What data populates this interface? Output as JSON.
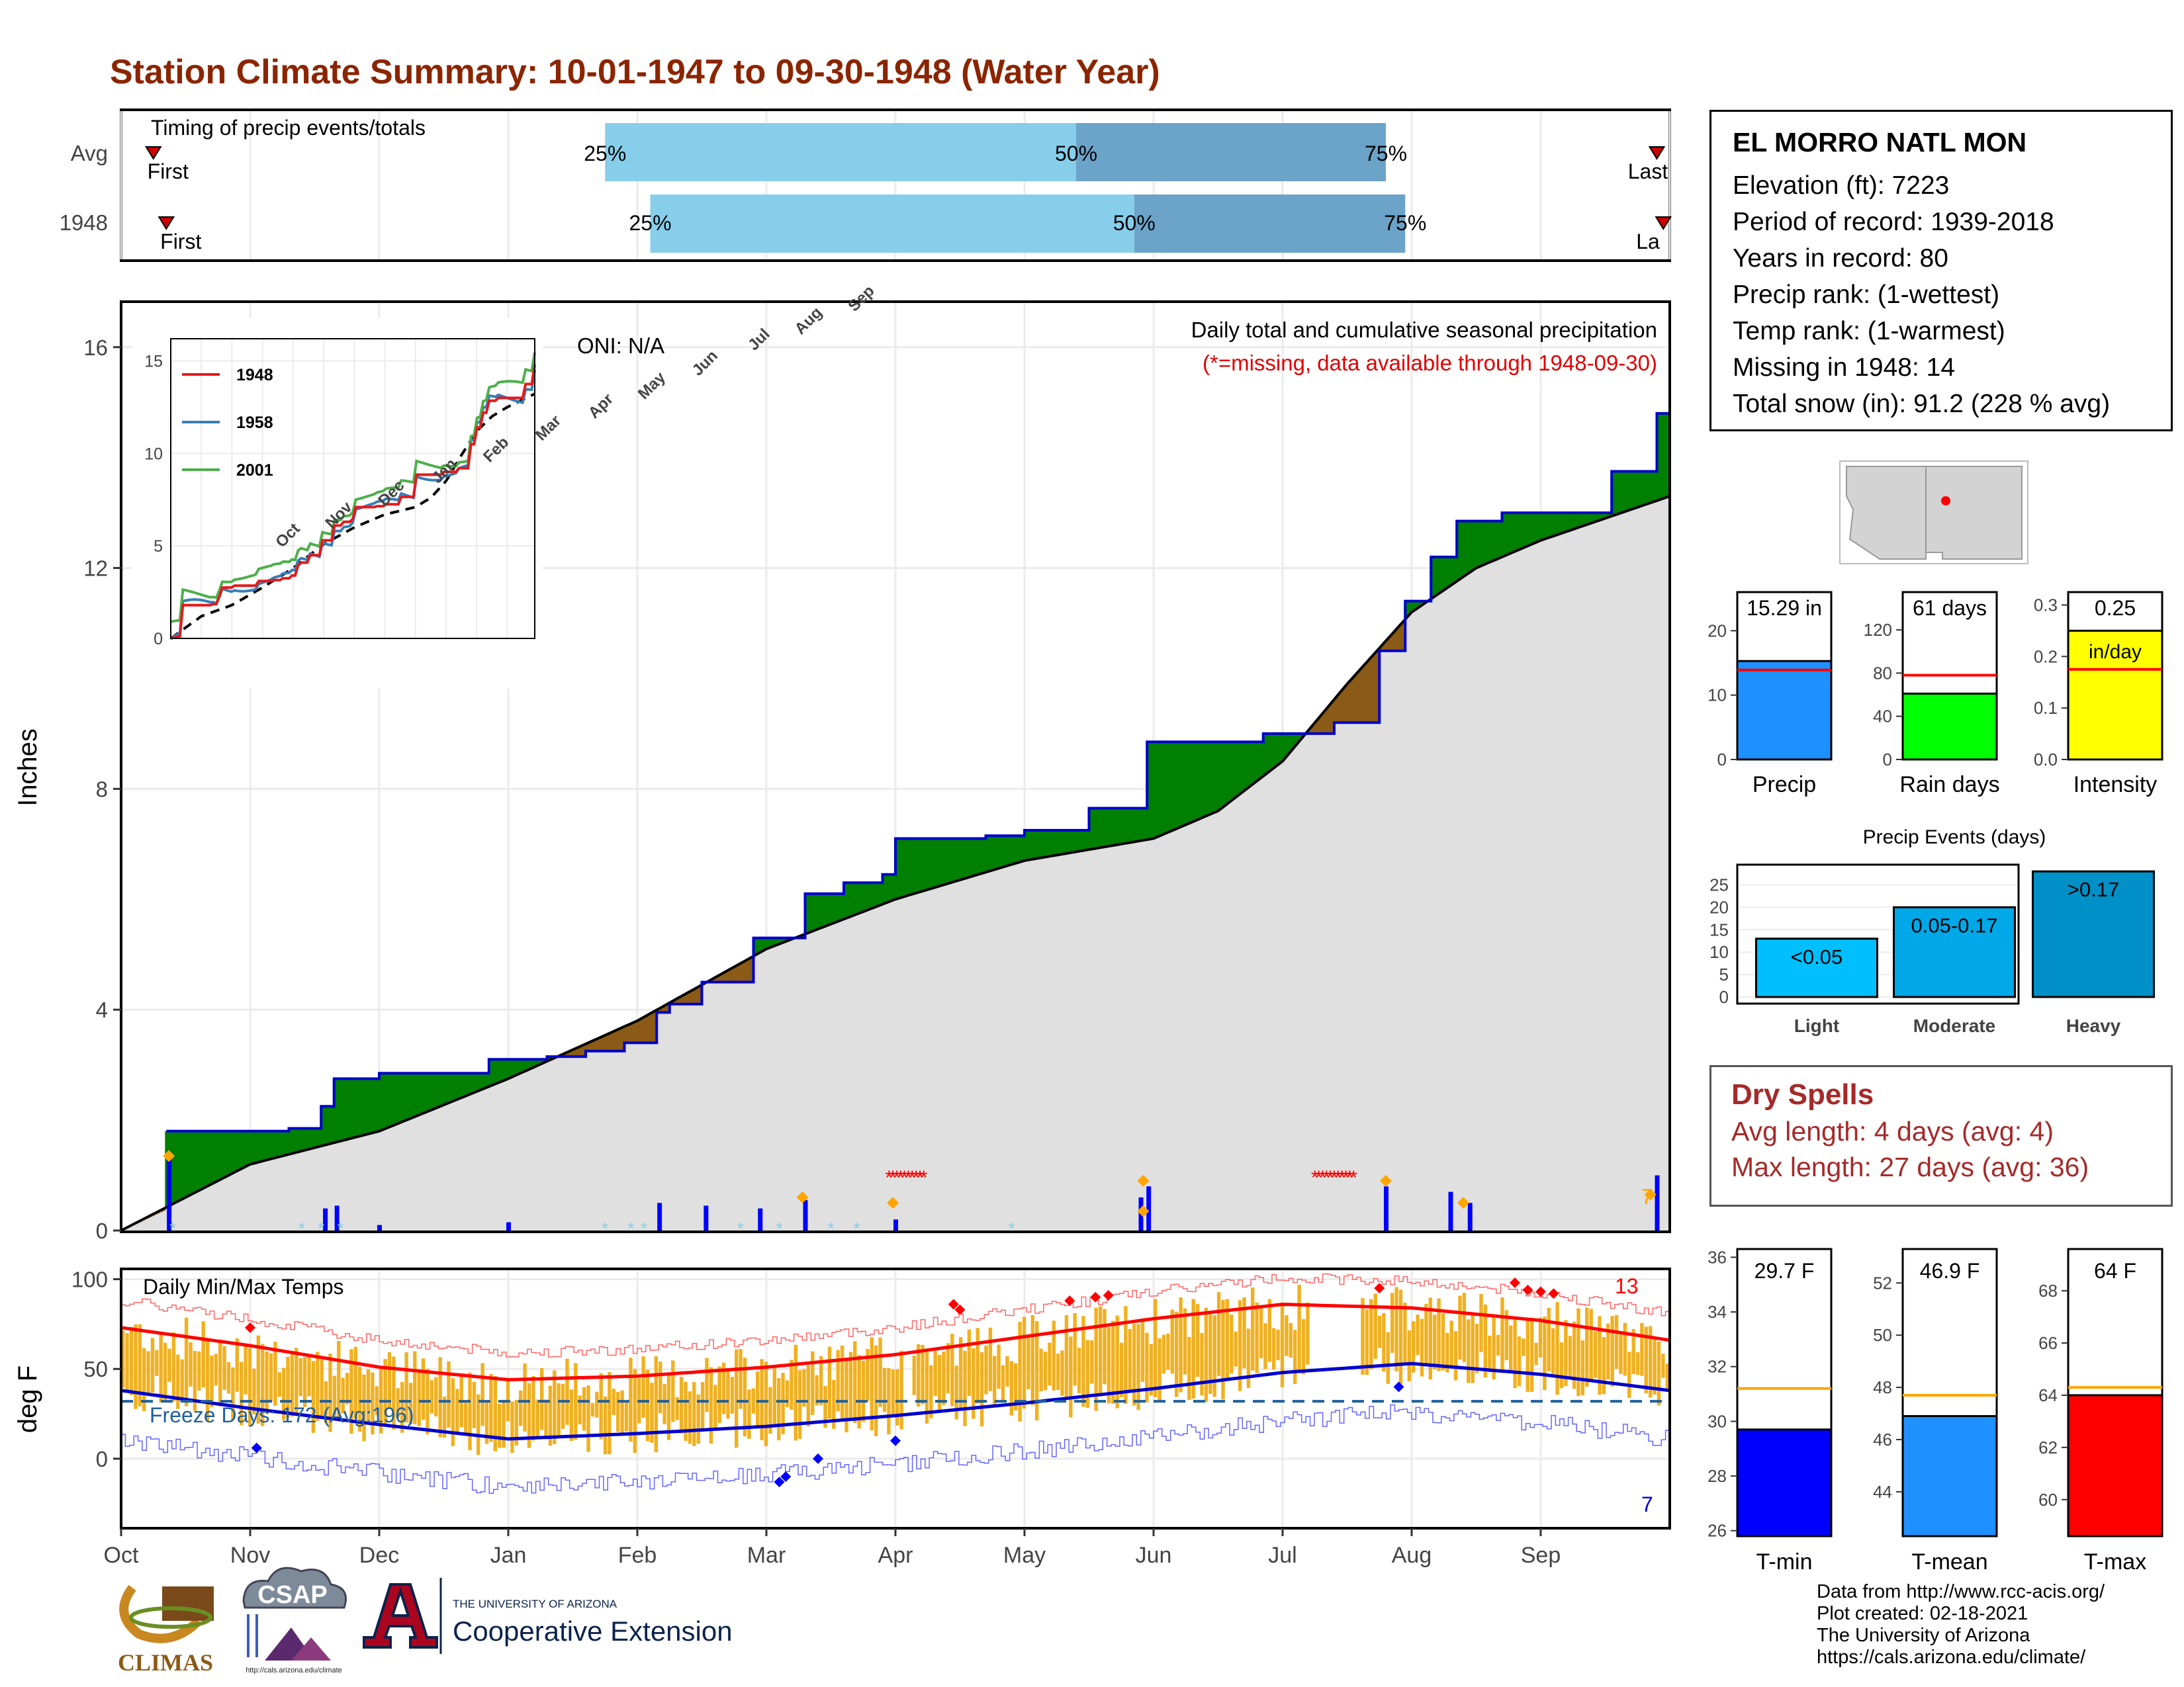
{
  "title": "Station Climate Summary: 10-01-1947 to 09-30-1948 (Water Year)",
  "timing": {
    "label": "Timing of precip events/totals",
    "rows": [
      {
        "name": "Avg",
        "first_label": "First",
        "last_label": "Last",
        "p25_label": "25%",
        "p50_label": "50%",
        "p75_label": "75%"
      },
      {
        "name": "1948",
        "first_label": "First",
        "last_label": "La",
        "p25_label": "25%",
        "p50_label": "50%",
        "p75_label": "75%"
      }
    ]
  },
  "precip_panel": {
    "ylabel": "Inches",
    "yticks": [
      "0",
      "4",
      "8",
      "12",
      "16"
    ],
    "oni_label": "ONI: N/A",
    "caption": "Daily total and cumulative seasonal precipitation",
    "missing_note": "(*=missing, data available through 1948-09-30)",
    "corner_count": "7",
    "colors": {
      "above_avg": "#008000",
      "below_avg": "#8b5a16",
      "avg_fill": "#e0e0e0",
      "observed_line": "#0000cd",
      "daily_bar": "#0000ff",
      "missing": "#ff0000",
      "snow": "#87ceeb",
      "max_marker": "#ffa500"
    }
  },
  "inset": {
    "yticks": [
      "0",
      "5",
      "10",
      "15"
    ],
    "xticks": [
      "Oct",
      "Nov",
      "Dec",
      "Jan",
      "Feb",
      "Mar",
      "Apr",
      "May",
      "Jun",
      "Jul",
      "Aug",
      "Sep"
    ],
    "legend": [
      {
        "name": "1948",
        "color": "#e41a1c"
      },
      {
        "name": "1958",
        "color": "#377eb8"
      },
      {
        "name": "2001",
        "color": "#4daf4a"
      }
    ]
  },
  "temp_panel": {
    "ylabel": "deg F",
    "yticks": [
      "0",
      "50",
      "100"
    ],
    "label": "Daily Min/Max Temps",
    "freeze_label": "Freeze Days: 172 (Avg:196)",
    "max_record_count": "13",
    "min_record_count": "7",
    "colors": {
      "bars": "#f0b020",
      "avg_max": "#ff0000",
      "avg_min": "#0000cd",
      "record_max": "#ff6666",
      "record_min": "#6666ff",
      "freeze": "#1f5fa0"
    }
  },
  "months": [
    "Oct",
    "Nov",
    "Dec",
    "Jan",
    "Feb",
    "Mar",
    "Apr",
    "May",
    "Jun",
    "Jul",
    "Aug",
    "Sep"
  ],
  "station": {
    "name": "EL MORRO NATL MON",
    "lines": [
      "Elevation (ft): 7223",
      "Period of record: 1939-2018",
      "Years in record: 80",
      "Precip rank:  (1-wettest)",
      "Temp rank:  (1-warmest)",
      "Missing in 1948: 14",
      "Total snow (in): 91.2 (228 % avg)"
    ]
  },
  "summary_bars": [
    {
      "label": "Precip",
      "value_label": "15.29 in",
      "value": 15.29,
      "avg": 13.9,
      "ymax": 26,
      "ticks": [
        "0",
        "10",
        "20"
      ],
      "tick_values": [
        0,
        10,
        20
      ],
      "color": "#1e90ff"
    },
    {
      "label": "Rain days",
      "value_label": "61 days",
      "value": 61,
      "avg": 78,
      "ymax": 155,
      "ticks": [
        "0",
        "40",
        "80",
        "120"
      ],
      "tick_values": [
        0,
        40,
        80,
        120
      ],
      "color": "#00ff00"
    },
    {
      "label": "Intensity",
      "value_label": "0.25",
      "sub_label": "in/day",
      "value": 0.25,
      "avg": 0.175,
      "ymax": 0.325,
      "ticks": [
        "0.0",
        "0.1",
        "0.2",
        "0.3"
      ],
      "tick_values": [
        0,
        0.1,
        0.2,
        0.3
      ],
      "color": "#ffff00"
    }
  ],
  "events": {
    "title": "Precip Events (days)",
    "yticks": [
      "0",
      "5",
      "10",
      "15",
      "20",
      "25"
    ],
    "bars": [
      {
        "label": "Light",
        "range": "<0.05",
        "value": 13,
        "color": "#00bfff"
      },
      {
        "label": "Moderate",
        "range": "0.05-0.17",
        "value": 20,
        "color": "#00a8e8"
      },
      {
        "label": "Heavy",
        "range": ">0.17",
        "value": 28,
        "color": "#0090c8"
      }
    ]
  },
  "dry_spells": {
    "title": "Dry Spells",
    "avg_length": "Avg length: 4 days (avg: 4)",
    "max_length": "Max length: 27 days (avg: 36)"
  },
  "temp_summary": [
    {
      "label": "T-min",
      "value_label": "29.7 F",
      "value": 29.7,
      "avg": 31.2,
      "ymin": 25.8,
      "ymax": 36.3,
      "ticks": [
        "26",
        "28",
        "30",
        "32",
        "34",
        "36"
      ],
      "tick_values": [
        26,
        28,
        30,
        32,
        34,
        36
      ],
      "color": "#0000ff"
    },
    {
      "label": "T-mean",
      "value_label": "46.9 F",
      "value": 46.9,
      "avg": 47.7,
      "ymin": 42.3,
      "ymax": 53.3,
      "ticks": [
        "44",
        "46",
        "48",
        "50",
        "52"
      ],
      "tick_values": [
        44,
        46,
        48,
        50,
        52
      ],
      "color": "#1e90ff"
    },
    {
      "label": "T-max",
      "value_label": "64 F",
      "value": 64,
      "avg": 64.3,
      "ymin": 58.6,
      "ymax": 69.6,
      "ticks": [
        "60",
        "62",
        "64",
        "66",
        "68"
      ],
      "tick_values": [
        60,
        62,
        64,
        66,
        68
      ],
      "color": "#ff0000"
    }
  ],
  "footer": [
    "Data from http://www.rcc-acis.org/",
    "Plot created: 02-18-2021",
    "The University of Arizona",
    "https://cals.arizona.edu/climate/"
  ],
  "logos": {
    "climas": "CLIMAS",
    "csap": "CSAP",
    "csap_url": "http://cals.arizona.edu/climate",
    "ua_small": "THE UNIVERSITY OF ARIZONA",
    "ua_big": "Cooperative Extension"
  },
  "chart_data": [
    {
      "type": "bar",
      "title": "Timing of precip events/totals",
      "series": [
        {
          "name": "Avg",
          "p25_month": 3.75,
          "p50_month": 7.4,
          "p75_month": 9.8,
          "first_month": 0.25,
          "last_month": 11.9
        },
        {
          "name": "1948",
          "p25_month": 4.1,
          "p50_month": 7.85,
          "p75_month": 9.95,
          "first_month": 0.35,
          "last_month": 11.95
        }
      ]
    },
    {
      "type": "area",
      "title": "Daily total and cumulative seasonal precipitation",
      "ylabel": "Inches",
      "ylim": [
        0,
        16.8
      ],
      "observed_cumulative": [
        {
          "x": 0.35,
          "y": 1.8
        },
        {
          "x": 1.3,
          "y": 1.85
        },
        {
          "x": 1.55,
          "y": 2.25
        },
        {
          "x": 1.65,
          "y": 2.75
        },
        {
          "x": 2.0,
          "y": 2.85
        },
        {
          "x": 2.85,
          "y": 3.1
        },
        {
          "x": 3.3,
          "y": 3.15
        },
        {
          "x": 3.6,
          "y": 3.25
        },
        {
          "x": 3.9,
          "y": 3.4
        },
        {
          "x": 4.15,
          "y": 3.95
        },
        {
          "x": 4.25,
          "y": 4.1
        },
        {
          "x": 4.5,
          "y": 4.5
        },
        {
          "x": 4.9,
          "y": 5.3
        },
        {
          "x": 5.3,
          "y": 6.1
        },
        {
          "x": 5.6,
          "y": 6.3
        },
        {
          "x": 5.9,
          "y": 6.45
        },
        {
          "x": 6.0,
          "y": 7.1
        },
        {
          "x": 6.7,
          "y": 7.15
        },
        {
          "x": 7.0,
          "y": 7.25
        },
        {
          "x": 7.5,
          "y": 7.65
        },
        {
          "x": 7.95,
          "y": 8.85
        },
        {
          "x": 8.85,
          "y": 9.0
        },
        {
          "x": 9.4,
          "y": 9.2
        },
        {
          "x": 9.75,
          "y": 10.5
        },
        {
          "x": 9.95,
          "y": 11.4
        },
        {
          "x": 10.15,
          "y": 12.2
        },
        {
          "x": 10.35,
          "y": 12.85
        },
        {
          "x": 10.7,
          "y": 13.0
        },
        {
          "x": 11.55,
          "y": 13.75
        },
        {
          "x": 11.9,
          "y": 14.8
        },
        {
          "x": 12.0,
          "y": 15.3
        }
      ],
      "average_cumulative": [
        {
          "x": 0,
          "y": 0
        },
        {
          "x": 1,
          "y": 1.2
        },
        {
          "x": 2,
          "y": 1.8
        },
        {
          "x": 3,
          "y": 2.75
        },
        {
          "x": 4,
          "y": 3.8
        },
        {
          "x": 5,
          "y": 5.1
        },
        {
          "x": 6,
          "y": 6.0
        },
        {
          "x": 7,
          "y": 6.7
        },
        {
          "x": 8,
          "y": 7.1
        },
        {
          "x": 8.5,
          "y": 7.6
        },
        {
          "x": 9,
          "y": 8.5
        },
        {
          "x": 9.5,
          "y": 9.9
        },
        {
          "x": 10,
          "y": 11.2
        },
        {
          "x": 10.5,
          "y": 12.0
        },
        {
          "x": 11,
          "y": 12.5
        },
        {
          "x": 11.5,
          "y": 12.9
        },
        {
          "x": 12,
          "y": 13.3
        }
      ],
      "daily_totals": [
        {
          "x": 0.37,
          "y": 1.3
        },
        {
          "x": 1.58,
          "y": 0.4
        },
        {
          "x": 1.67,
          "y": 0.45
        },
        {
          "x": 2.0,
          "y": 0.1
        },
        {
          "x": 3.0,
          "y": 0.15
        },
        {
          "x": 4.17,
          "y": 0.5
        },
        {
          "x": 4.53,
          "y": 0.45
        },
        {
          "x": 4.95,
          "y": 0.4
        },
        {
          "x": 5.3,
          "y": 0.55
        },
        {
          "x": 6.0,
          "y": 0.2
        },
        {
          "x": 7.9,
          "y": 0.6
        },
        {
          "x": 7.96,
          "y": 0.8
        },
        {
          "x": 9.8,
          "y": 0.8
        },
        {
          "x": 10.3,
          "y": 0.7
        },
        {
          "x": 10.45,
          "y": 0.5
        },
        {
          "x": 11.9,
          "y": 1.0
        }
      ],
      "missing_periods": [
        [
          5.95,
          6.25
        ],
        [
          9.25,
          9.55
        ]
      ]
    },
    {
      "type": "line",
      "title": "Daily Min/Max Temps",
      "ylabel": "deg F",
      "ylim": [
        -38,
        105
      ],
      "avg_max": [
        {
          "x": 0,
          "y": 73
        },
        {
          "x": 1,
          "y": 63
        },
        {
          "x": 2,
          "y": 51
        },
        {
          "x": 3,
          "y": 44
        },
        {
          "x": 4,
          "y": 46
        },
        {
          "x": 5,
          "y": 51
        },
        {
          "x": 6,
          "y": 58
        },
        {
          "x": 7,
          "y": 68
        },
        {
          "x": 8,
          "y": 78
        },
        {
          "x": 9,
          "y": 86
        },
        {
          "x": 10,
          "y": 84
        },
        {
          "x": 11,
          "y": 77
        },
        {
          "x": 12,
          "y": 66
        }
      ],
      "avg_min": [
        {
          "x": 0,
          "y": 38
        },
        {
          "x": 1,
          "y": 28
        },
        {
          "x": 2,
          "y": 19
        },
        {
          "x": 3,
          "y": 11
        },
        {
          "x": 4,
          "y": 14
        },
        {
          "x": 5,
          "y": 18
        },
        {
          "x": 6,
          "y": 24
        },
        {
          "x": 7,
          "y": 31
        },
        {
          "x": 8,
          "y": 39
        },
        {
          "x": 9,
          "y": 48
        },
        {
          "x": 10,
          "y": 53
        },
        {
          "x": 11,
          "y": 47
        },
        {
          "x": 12,
          "y": 38
        }
      ],
      "freeze_threshold": 32
    },
    {
      "type": "bar",
      "title": "Precip Events (days)",
      "categories": [
        "Light",
        "Moderate",
        "Heavy"
      ],
      "values": [
        13,
        20,
        28
      ]
    }
  ]
}
